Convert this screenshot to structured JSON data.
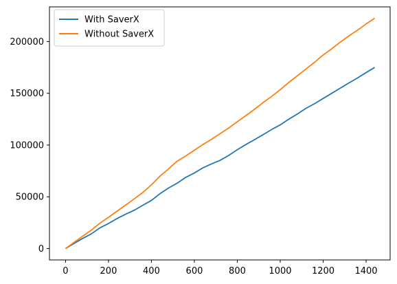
{
  "chart_data": {
    "type": "line",
    "title": "",
    "xlabel": "",
    "ylabel": "",
    "xlim": [
      -75,
      1512
    ],
    "ylim": [
      -11000,
      233500
    ],
    "x_ticks": [
      0,
      200,
      400,
      600,
      800,
      1000,
      1200,
      1400
    ],
    "x_tick_labels": [
      "0",
      "200",
      "400",
      "600",
      "800",
      "1000",
      "1200",
      "1400"
    ],
    "y_ticks": [
      0,
      50000,
      100000,
      150000,
      200000
    ],
    "y_tick_labels": [
      "0",
      "50000",
      "100000",
      "150000",
      "200000"
    ],
    "grid": false,
    "legend": {
      "placement": "top-left"
    },
    "series": [
      {
        "name": "With SaverX",
        "color": "#1f77b4",
        "x": [
          0,
          40,
          80,
          120,
          160,
          200,
          240,
          280,
          320,
          360,
          400,
          440,
          480,
          520,
          560,
          600,
          640,
          680,
          720,
          760,
          800,
          840,
          880,
          920,
          960,
          1000,
          1040,
          1080,
          1120,
          1160,
          1200,
          1240,
          1280,
          1320,
          1360,
          1400,
          1440
        ],
        "y": [
          0,
          5000,
          9800,
          14200,
          20000,
          24200,
          29000,
          33200,
          37000,
          41800,
          46500,
          53000,
          58500,
          63200,
          68800,
          73000,
          78000,
          81800,
          85200,
          90000,
          95500,
          100500,
          105200,
          110000,
          115000,
          119500,
          125000,
          130000,
          135500,
          140000,
          145000,
          150000,
          155000,
          160000,
          164800,
          170000,
          175000
        ]
      },
      {
        "name": "Without SaverX",
        "color": "#ff7f0e",
        "x": [
          0,
          40,
          80,
          120,
          160,
          200,
          240,
          280,
          320,
          360,
          400,
          440,
          480,
          520,
          560,
          600,
          640,
          680,
          720,
          760,
          800,
          840,
          880,
          920,
          960,
          1000,
          1040,
          1080,
          1120,
          1160,
          1200,
          1240,
          1280,
          1320,
          1360,
          1400,
          1440
        ],
        "y": [
          0,
          6000,
          12000,
          17800,
          24500,
          30200,
          36200,
          42000,
          48000,
          54200,
          61500,
          70000,
          77000,
          84500,
          89500,
          95000,
          100500,
          105500,
          111000,
          116500,
          122500,
          128500,
          134500,
          141000,
          147000,
          153500,
          160500,
          167000,
          173500,
          180000,
          187000,
          193000,
          199500,
          205500,
          211000,
          217000,
          222500
        ]
      }
    ]
  }
}
